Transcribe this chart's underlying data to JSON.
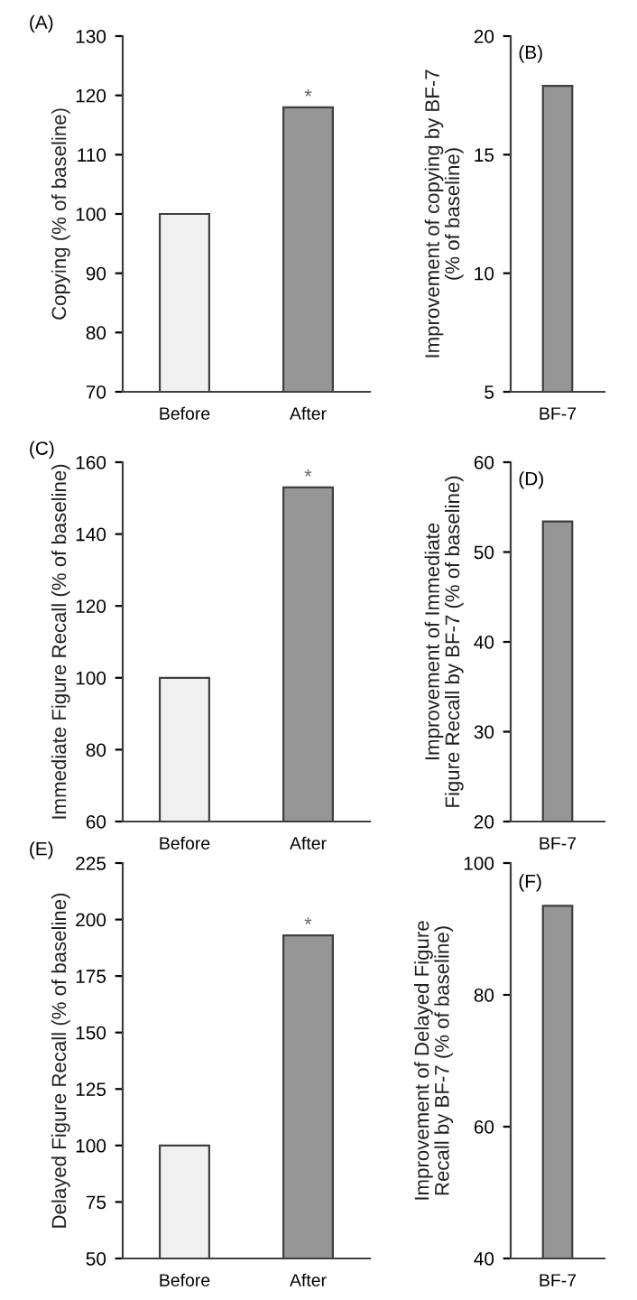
{
  "chart_data": [
    {
      "type": "bar",
      "title": "(A)",
      "ylabel": "Copying (% of baseline)",
      "categories": [
        "Before",
        "After"
      ],
      "values": [
        100,
        118
      ],
      "colors": [
        "#f0f0f0",
        "#969696"
      ],
      "ylim": [
        70,
        130
      ],
      "yticks": [
        70,
        80,
        90,
        100,
        110,
        120,
        130
      ],
      "grid": false,
      "legend": false,
      "annotations": [
        {
          "text": "*",
          "x": "After",
          "y": 118
        }
      ]
    },
    {
      "type": "bar",
      "title": "(B)",
      "ylabel": "Improvement of copying by BF-7\n(% of baseline)",
      "categories": [
        "BF-7"
      ],
      "values": [
        17.9
      ],
      "colors": [
        "#969696"
      ],
      "ylim": [
        5,
        20
      ],
      "yticks": [
        5,
        10,
        15,
        20
      ],
      "grid": false,
      "legend": false
    },
    {
      "type": "bar",
      "title": "(C)",
      "ylabel": "Immediate Figure Recall (% of baseline)",
      "categories": [
        "Before",
        "After"
      ],
      "values": [
        100,
        153
      ],
      "colors": [
        "#f0f0f0",
        "#969696"
      ],
      "ylim": [
        60,
        160
      ],
      "yticks": [
        60,
        80,
        100,
        120,
        140,
        160
      ],
      "grid": false,
      "legend": false,
      "annotations": [
        {
          "text": "*",
          "x": "After",
          "y": 153
        }
      ]
    },
    {
      "type": "bar",
      "title": "(D)",
      "ylabel": "Improvement of Immediate\nFigure Recall by BF-7 (% of baseline)",
      "categories": [
        "BF-7"
      ],
      "values": [
        53.4
      ],
      "colors": [
        "#969696"
      ],
      "ylim": [
        20,
        60
      ],
      "yticks": [
        20,
        30,
        40,
        50,
        60
      ],
      "grid": false,
      "legend": false
    },
    {
      "type": "bar",
      "title": "(E)",
      "ylabel": "Delayed Figure Recall (% of baseline)",
      "categories": [
        "Before",
        "After"
      ],
      "values": [
        100,
        193
      ],
      "colors": [
        "#f0f0f0",
        "#969696"
      ],
      "ylim": [
        50,
        225
      ],
      "yticks": [
        50,
        75,
        100,
        125,
        150,
        175,
        200,
        225
      ],
      "grid": false,
      "legend": false,
      "annotations": [
        {
          "text": "*",
          "x": "After",
          "y": 193
        }
      ]
    },
    {
      "type": "bar",
      "title": "(F)",
      "ylabel": "Improvement of Delayed Figure\nRecall by BF-7 (% of baseline)",
      "categories": [
        "BF-7"
      ],
      "values": [
        93.5
      ],
      "colors": [
        "#969696"
      ],
      "ylim": [
        40,
        100
      ],
      "yticks": [
        40,
        60,
        80,
        100
      ],
      "grid": false,
      "legend": false
    }
  ]
}
